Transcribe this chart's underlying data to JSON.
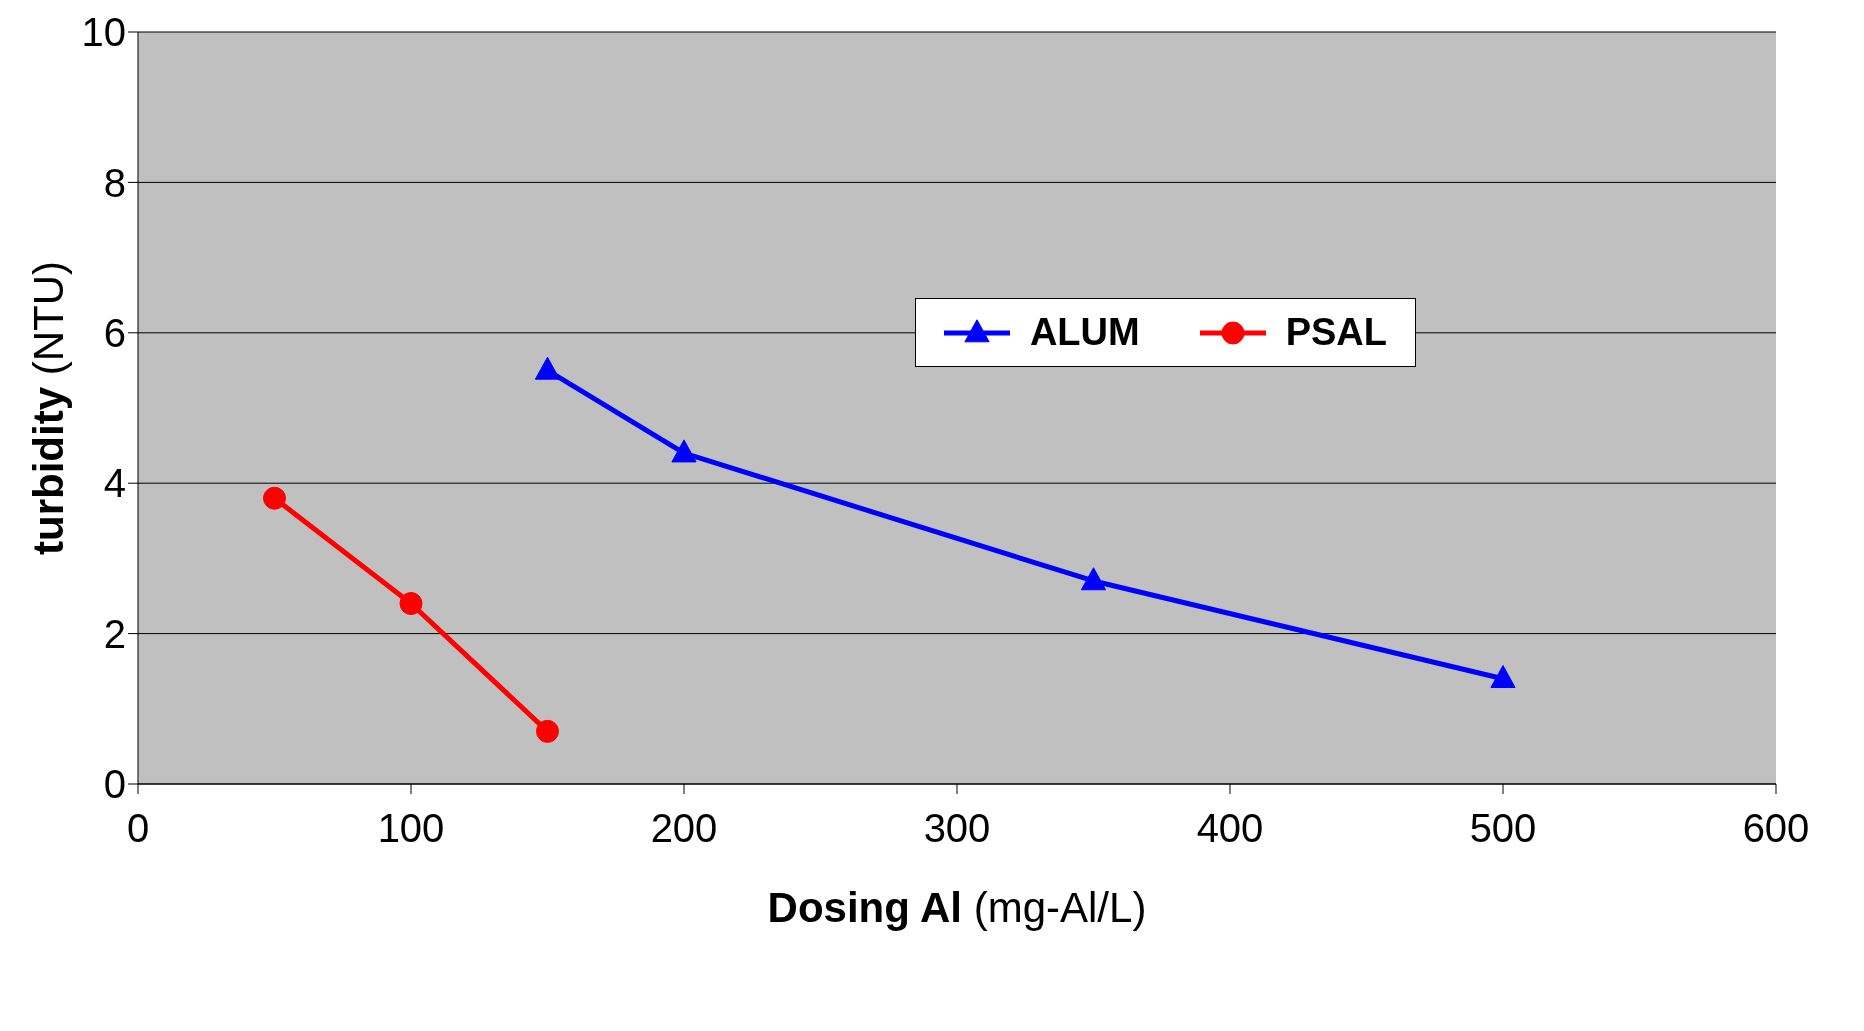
{
  "chart_data": {
    "type": "line",
    "xlabel": "Dosing Al (mg-Al/L)",
    "ylabel": "turbidity (NTU)",
    "series": [
      {
        "name": "ALUM",
        "color": "#0000ff",
        "marker": "triangle",
        "x": [
          150,
          200,
          350,
          500
        ],
        "values": [
          5.5,
          4.4,
          2.7,
          1.4
        ]
      },
      {
        "name": "PSAL",
        "color": "#ff0000",
        "marker": "circle",
        "x": [
          50,
          100,
          150
        ],
        "values": [
          3.8,
          2.4,
          0.7
        ]
      }
    ],
    "xlim": [
      0,
      600
    ],
    "xticks": [
      0,
      100,
      200,
      300,
      400,
      500,
      600
    ],
    "ylim": [
      0,
      10
    ],
    "yticks": [
      0,
      2,
      4,
      6,
      8,
      10
    ],
    "grid": "y",
    "legend": "right",
    "line_style": "solid"
  }
}
